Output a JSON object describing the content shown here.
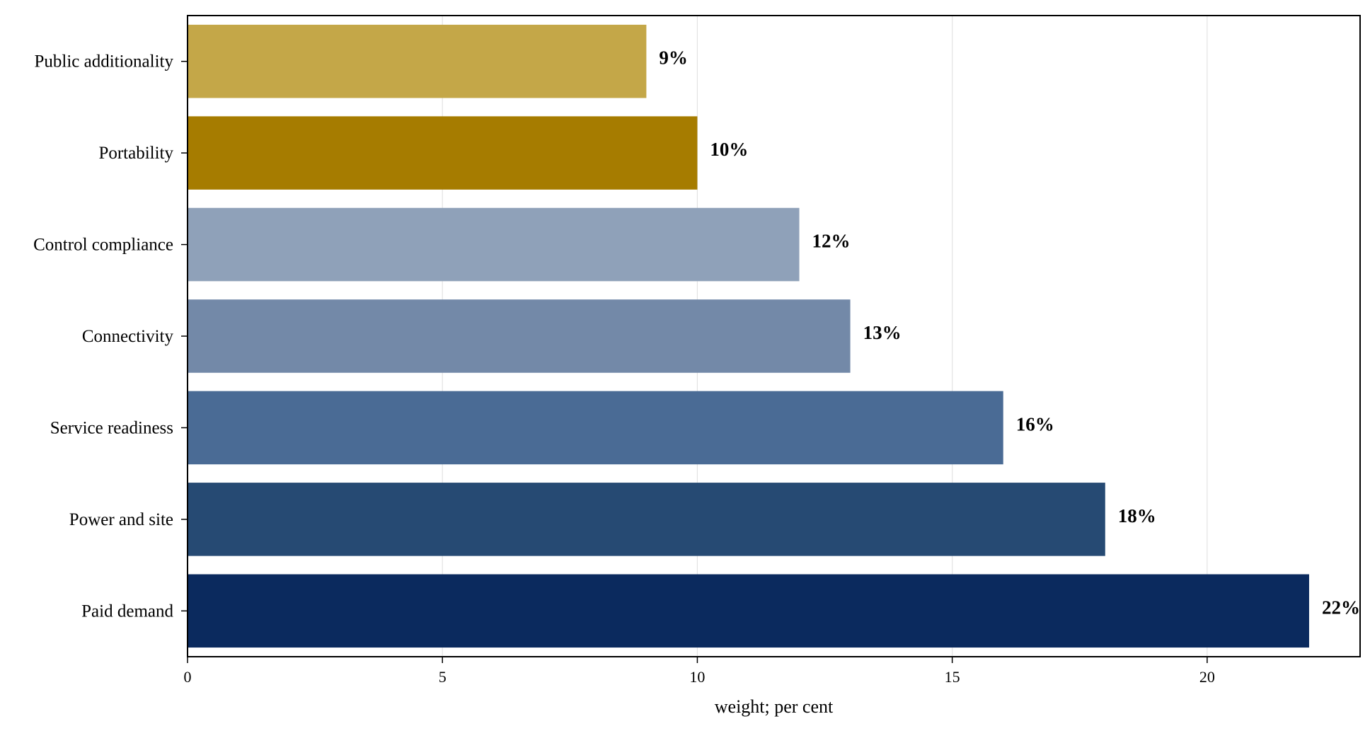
{
  "chart_data": {
    "type": "bar",
    "orientation": "horizontal",
    "categories": [
      "Paid demand",
      "Power and site",
      "Service readiness",
      "Connectivity",
      "Control compliance",
      "Portability",
      "Public additionality"
    ],
    "values": [
      22,
      18,
      16,
      13,
      12,
      10,
      9
    ],
    "value_labels": [
      "22%",
      "18%",
      "16%",
      "13%",
      "12%",
      "10%",
      "9%"
    ],
    "colors": [
      "#0b2a5e",
      "#264a73",
      "#4a6b95",
      "#7389a8",
      "#8fa1b9",
      "#a67c00",
      "#c4a748"
    ],
    "xlabel": "weight; per cent",
    "ylabel": "",
    "xlim": [
      0,
      23
    ],
    "xticks": [
      0,
      5,
      10,
      15,
      20
    ],
    "grid": "vertical"
  }
}
